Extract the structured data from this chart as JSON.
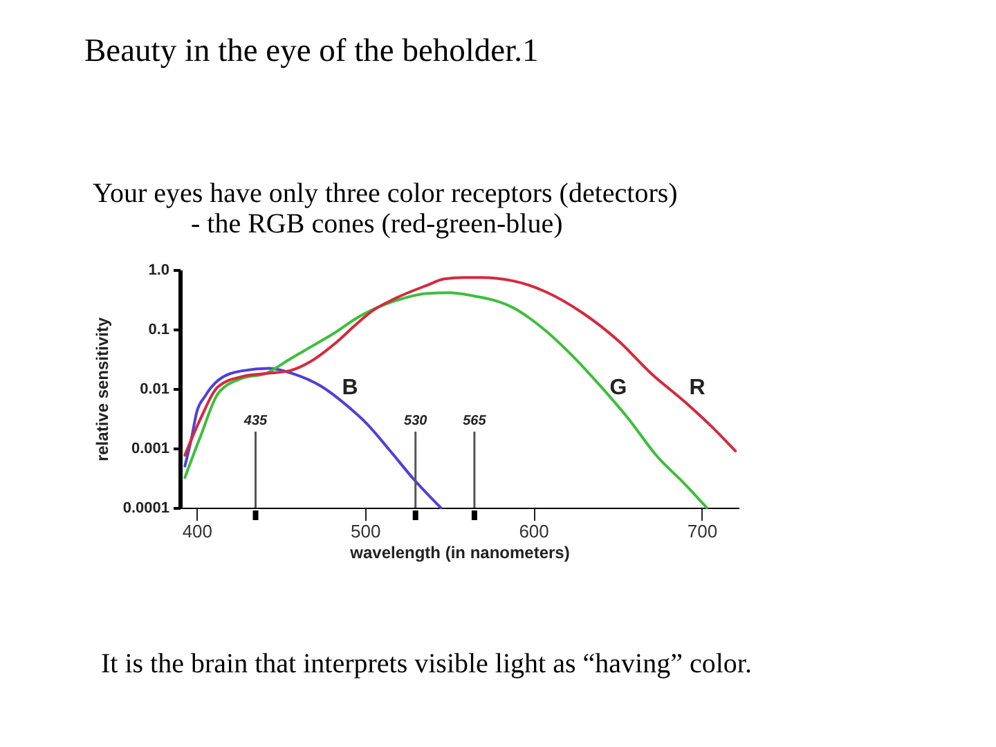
{
  "chart_data": {
    "type": "line",
    "title": "Beauty in the eye of the beholder.1",
    "subtitle": "Your eyes have only three color receptors (detectors)\n- the RGB cones  (red-green-blue)",
    "xlabel": "wavelength (in nanometers)",
    "ylabel": "relative sensitivity",
    "annotations": [
      "It is the brain that interprets visible light as “having” color."
    ],
    "log": "y",
    "xlim": [
      390,
      722
    ],
    "xticks": [
      400,
      500,
      600,
      700
    ],
    "ylim": [
      0.0001,
      1
    ],
    "yticks": [
      0.0001,
      0.001,
      0.01,
      0.1,
      {
        "value": 1,
        "label": "1.0"
      }
    ],
    "ref_lines": [
      {
        "axis": "x",
        "value": 435,
        "label": "435"
      },
      {
        "axis": "x",
        "value": 530,
        "label": "530"
      },
      {
        "axis": "x",
        "value": 565,
        "label": "565"
      }
    ],
    "series": [
      {
        "name": "B",
        "color": "#4f3fd8",
        "x": [
          393,
          397,
          400,
          405,
          413,
          427,
          443,
          457,
          474,
          490,
          501,
          515,
          529,
          545
        ],
        "values": [
          0.0005,
          0.0015,
          0.004,
          0.0075,
          0.014,
          0.02,
          0.022,
          0.018,
          0.011,
          0.005,
          0.0026,
          0.0009,
          0.0003,
          0.0001
        ]
      },
      {
        "name": "G",
        "color": "#3cbf3c",
        "x": [
          393,
          402,
          413,
          427,
          441,
          455,
          468,
          482,
          496,
          504,
          518,
          537,
          550,
          563,
          588,
          607,
          624,
          640,
          657,
          673,
          690,
          703
        ],
        "values": [
          0.00032,
          0.0015,
          0.0085,
          0.015,
          0.018,
          0.031,
          0.051,
          0.087,
          0.16,
          0.21,
          0.3,
          0.4,
          0.41,
          0.37,
          0.23,
          0.096,
          0.034,
          0.011,
          0.003,
          0.00076,
          0.00025,
          0.0001
        ]
      },
      {
        "name": "R",
        "color": "#d42a3c",
        "x": [
          393,
          402,
          413,
          427,
          441,
          455,
          468,
          482,
          496,
          504,
          518,
          537,
          547,
          559,
          569,
          588,
          607,
          629,
          651,
          670,
          690,
          706,
          720
        ],
        "values": [
          0.00076,
          0.003,
          0.011,
          0.016,
          0.018,
          0.02,
          0.029,
          0.057,
          0.13,
          0.2,
          0.33,
          0.55,
          0.7,
          0.74,
          0.74,
          0.65,
          0.43,
          0.19,
          0.062,
          0.018,
          0.006,
          0.0023,
          0.0009
        ]
      }
    ]
  }
}
